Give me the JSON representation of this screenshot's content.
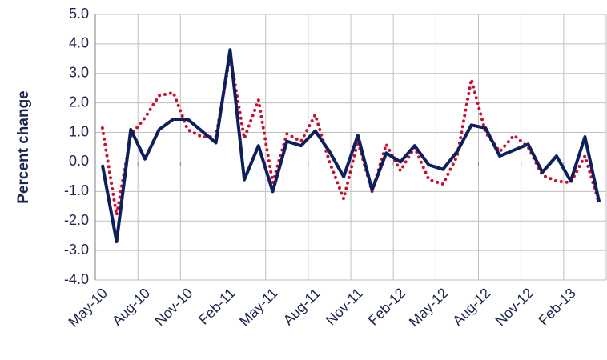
{
  "chart_data": {
    "type": "line",
    "ylabel": "Percent change",
    "categories": [
      "May-10",
      null,
      null,
      "Aug-10",
      null,
      null,
      "Nov-10",
      null,
      null,
      "Feb-11",
      null,
      null,
      "May-11",
      null,
      null,
      "Aug-11",
      null,
      null,
      "Nov-11",
      null,
      null,
      "Feb-12",
      null,
      null,
      "May-12",
      null,
      null,
      "Aug-12",
      null,
      null,
      "Nov-12",
      null,
      null,
      "Feb-13",
      null,
      null
    ],
    "series": [
      {
        "color": "#c8102e",
        "style": "dotted",
        "values": [
          1.15,
          -1.8,
          0.9,
          1.5,
          2.25,
          2.35,
          1.1,
          0.85,
          0.85,
          3.6,
          0.8,
          2.1,
          -0.7,
          0.95,
          0.7,
          1.6,
          0.0,
          -1.25,
          0.7,
          -1.0,
          0.6,
          -0.3,
          0.5,
          -0.6,
          -0.75,
          0.2,
          2.8,
          1.0,
          0.35,
          0.9,
          0.5,
          -0.45,
          -0.65,
          -0.7,
          0.2,
          -1.4
        ]
      },
      {
        "color": "#0d1f5c",
        "style": "solid",
        "values": [
          -0.1,
          -2.7,
          1.1,
          0.1,
          1.1,
          1.45,
          1.45,
          1.05,
          0.65,
          3.8,
          -0.6,
          0.55,
          -1.0,
          0.7,
          0.55,
          1.05,
          0.35,
          -0.5,
          0.9,
          -0.95,
          0.3,
          0.0,
          0.55,
          -0.1,
          -0.25,
          0.35,
          1.25,
          1.15,
          0.2,
          0.4,
          0.6,
          -0.35,
          0.2,
          -0.65,
          0.85,
          -1.35
        ]
      }
    ],
    "ylim": [
      -4,
      5
    ],
    "yticks": [
      {
        "value": -4,
        "label": "-4.0"
      },
      {
        "value": -3,
        "label": "-3.0"
      },
      {
        "value": -2,
        "label": "-2.0"
      },
      {
        "value": -1,
        "label": "-1.0"
      },
      {
        "value": 0,
        "label": "0.0"
      },
      {
        "value": 1,
        "label": "1.0"
      },
      {
        "value": 2,
        "label": "2.0"
      },
      {
        "value": 3,
        "label": "3.0"
      },
      {
        "value": 4,
        "label": "4.0"
      },
      {
        "value": 5,
        "label": "5.0"
      }
    ],
    "grid": true
  }
}
